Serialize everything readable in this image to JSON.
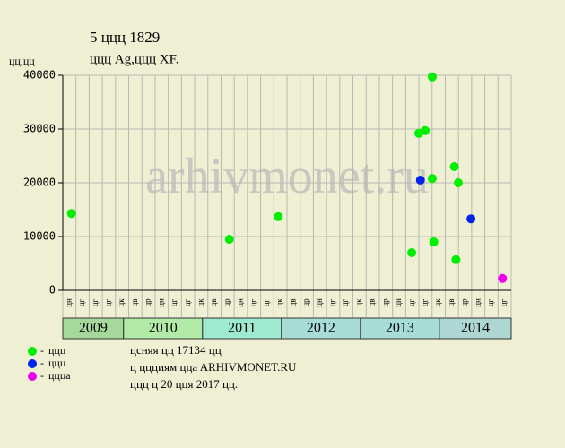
{
  "chart_data": {
    "type": "scatter",
    "title": "5 ццц 1829",
    "subtitle": "ццц Ag,ццц XF.",
    "ylabel": "цц,цц",
    "watermark": "arhivmonet.ru",
    "xlim": [
      2009.23,
      2014.91
    ],
    "ylim": [
      0,
      40000
    ],
    "yticks": [
      0,
      10000,
      20000,
      30000,
      40000
    ],
    "grid": true,
    "years": [
      2009,
      2010,
      2011,
      2012,
      2013,
      2014
    ],
    "year_colors": [
      "#a6d89c",
      "#b2eaa8",
      "#9eead0",
      "#a8dcd6",
      "#a8dcd6",
      "#aed6d2"
    ],
    "month_labels": [
      "цн",
      "цг",
      "цг",
      "цг",
      "цк",
      "цв",
      "цр",
      "цн",
      "цг",
      "цг",
      "цк",
      "цв",
      "цр",
      "цн",
      "цг",
      "цг",
      "цк",
      "цв",
      "цр",
      "цн",
      "цг",
      "цг",
      "цк",
      "цв",
      "цр",
      "цн",
      "цг",
      "цг",
      "цк",
      "цв",
      "цр",
      "цн",
      "цг",
      "цг"
    ],
    "series": [
      {
        "name": "ццц",
        "color": "#00ee00",
        "x": [
          2009.34,
          2011.34,
          2011.96,
          2013.65,
          2013.74,
          2013.82,
          2013.91,
          2013.91,
          2013.93,
          2014.19,
          2014.24,
          2014.21
        ],
        "values": [
          14300,
          9500,
          13700,
          7000,
          29200,
          29700,
          39700,
          20800,
          9000,
          23000,
          20000,
          5700
        ]
      },
      {
        "name": "ццц",
        "color": "#0022ee",
        "x": [
          2013.76,
          2014.4
        ],
        "values": [
          20500,
          13300
        ]
      },
      {
        "name": "цццa",
        "color": "#ee00ee",
        "x": [
          2014.8
        ],
        "values": [
          2200
        ]
      }
    ],
    "notes": [
      "цcняя цц 17134 цц",
      "ц ццциям ццa ARHIVMONET.RU",
      "ццц ц 20 цця 2017 цц."
    ]
  }
}
